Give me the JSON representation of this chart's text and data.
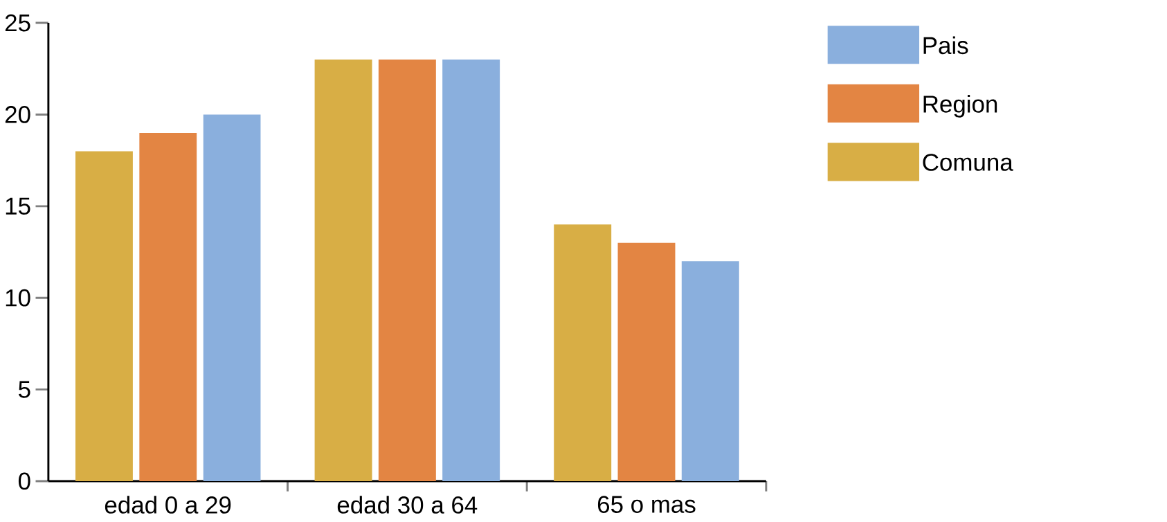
{
  "chart_data": {
    "type": "bar",
    "categories": [
      "edad 0 a 29",
      "edad 30 a 64",
      "65 o mas"
    ],
    "series": [
      {
        "name": "Comuna",
        "color": "#d8ae45",
        "values": [
          18,
          23,
          14
        ]
      },
      {
        "name": "Region",
        "color": "#e38543",
        "values": [
          19,
          23,
          13
        ]
      },
      {
        "name": "Pais",
        "color": "#8aafdd",
        "values": [
          20,
          23,
          12
        ]
      }
    ],
    "ylim": [
      0,
      25
    ],
    "yticks": [
      0,
      5,
      10,
      15,
      20,
      25
    ],
    "legend": "top right"
  }
}
